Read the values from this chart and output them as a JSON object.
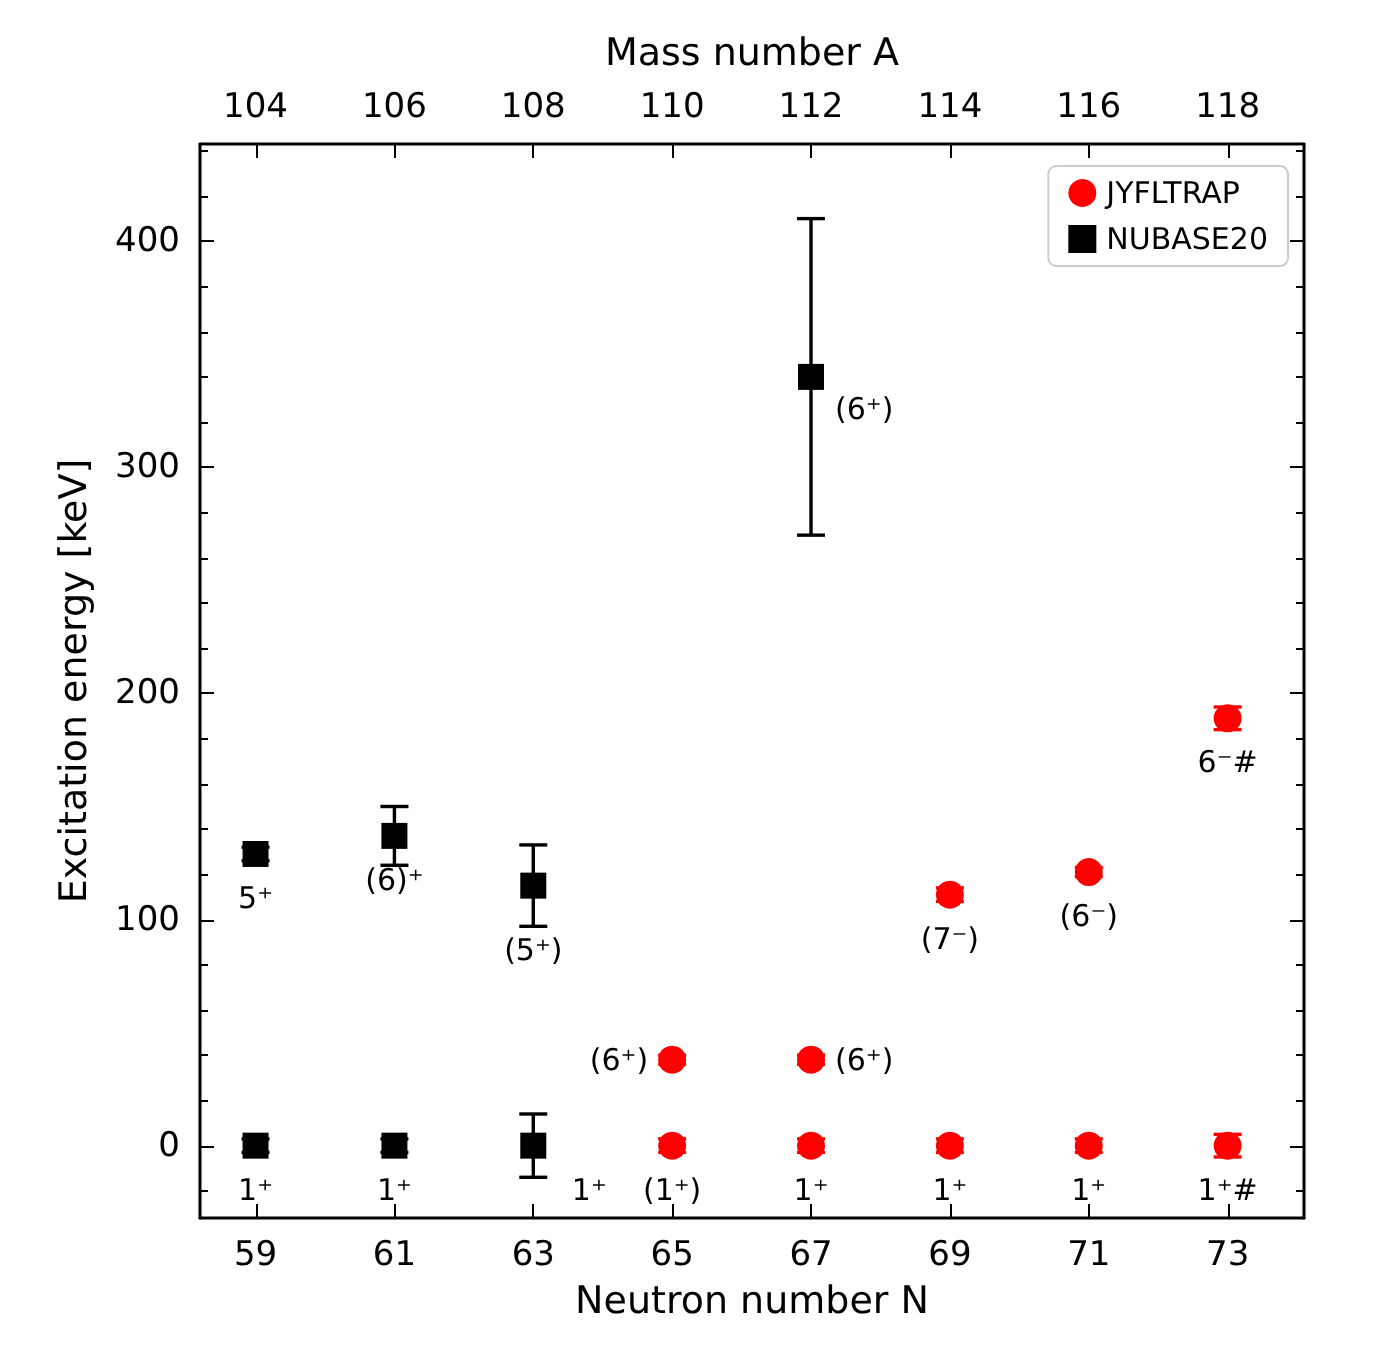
{
  "chart_data": {
    "type": "scatter",
    "xlabel": "Neutron number N",
    "ylabel": "Excitation energy [keV]",
    "x2label": "Mass number A",
    "xlim": [
      58.2,
      74.1
    ],
    "xticks": [
      59,
      61,
      63,
      65,
      67,
      69,
      71,
      73
    ],
    "x2lim": [
      103.2,
      119.1
    ],
    "x2ticks": [
      104,
      106,
      108,
      110,
      112,
      114,
      116,
      118
    ],
    "ylim": [
      -32,
      443
    ],
    "yticks": [
      0,
      100,
      200,
      300,
      400
    ],
    "legend": "top right",
    "series": [
      {
        "name": "JYFLTRAP",
        "color": "#ff0000",
        "marker": "circle",
        "x": [
          65,
          65,
          67,
          67,
          69,
          69,
          71,
          71,
          73,
          73
        ],
        "values": [
          38,
          0,
          38,
          0,
          111,
          0,
          121,
          0,
          189,
          0
        ],
        "errors": [
          2,
          3,
          2,
          3,
          3,
          3,
          2,
          3,
          5,
          5
        ]
      },
      {
        "name": "NUBASE20",
        "color": "#000000",
        "marker": "square",
        "x": [
          59,
          59,
          61,
          61,
          63,
          63,
          67
        ],
        "values": [
          129,
          0,
          137,
          0,
          115,
          0,
          340
        ],
        "errors": [
          3,
          3,
          13,
          3,
          18,
          14,
          70
        ]
      }
    ],
    "annotations": [
      {
        "text": "(6⁺)",
        "x": 65,
        "y": 38
      },
      {
        "text": "(1⁺)",
        "x": 65,
        "y": 0
      },
      {
        "text": "(6⁺)",
        "x": 67,
        "y": 38
      },
      {
        "text": "1⁺",
        "x": 67,
        "y": 0
      },
      {
        "text": "(7⁻)",
        "x": 69,
        "y": 111
      },
      {
        "text": "1⁺",
        "x": 69,
        "y": 0
      },
      {
        "text": "(6⁻)",
        "x": 71,
        "y": 121
      },
      {
        "text": "1⁺",
        "x": 71,
        "y": 0
      },
      {
        "text": "6⁻#",
        "x": 73,
        "y": 189
      },
      {
        "text": "1⁺#",
        "x": 73,
        "y": 0
      },
      {
        "text": "5⁺",
        "x": 59,
        "y": 129
      },
      {
        "text": "1⁺",
        "x": 59,
        "y": 0
      },
      {
        "text": "(6)⁺",
        "x": 61,
        "y": 137
      },
      {
        "text": "1⁺",
        "x": 61,
        "y": 0
      },
      {
        "text": "(5⁺)",
        "x": 63,
        "y": 115
      },
      {
        "text": "1⁺",
        "x": 63,
        "y": 0
      },
      {
        "text": "(6⁺)",
        "x": 67,
        "y": 340
      }
    ]
  }
}
